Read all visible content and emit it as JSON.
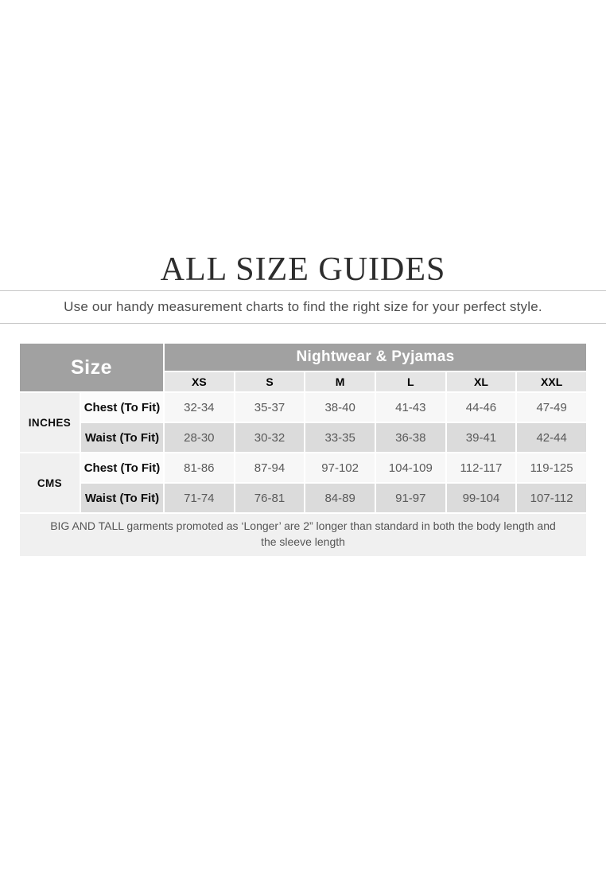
{
  "page": {
    "title": "ALL SIZE GUIDES",
    "subtitle": "Use our handy measurement charts to find the right size for your perfect style."
  },
  "table": {
    "corner_label": "Size",
    "category_header": "Nightwear & Pyjamas",
    "size_labels": [
      "XS",
      "S",
      "M",
      "L",
      "XL",
      "XXL"
    ],
    "unit_groups": [
      {
        "unit": "INCHES",
        "rows": [
          {
            "label": "Chest (To Fit)",
            "values": [
              "32-34",
              "35-37",
              "38-40",
              "41-43",
              "44-46",
              "47-49"
            ]
          },
          {
            "label": "Waist (To Fit)",
            "values": [
              "28-30",
              "30-32",
              "33-35",
              "36-38",
              "39-41",
              "42-44"
            ]
          }
        ]
      },
      {
        "unit": "CMS",
        "rows": [
          {
            "label": "Chest (To Fit)",
            "values": [
              "81-86",
              "87-94",
              "97-102",
              "104-109",
              "112-117",
              "119-125"
            ]
          },
          {
            "label": "Waist (To Fit)",
            "values": [
              "71-74",
              "76-81",
              "84-89",
              "91-97",
              "99-104",
              "107-112"
            ]
          }
        ]
      }
    ],
    "footnote": "BIG AND TALL garments promoted as ‘Longer’ are 2” longer than standard in both the body length and the sleeve length"
  },
  "colors": {
    "header_gray": "#a1a1a1",
    "size_row_gray": "#e5e5e5",
    "waist_row_gray": "#dbdbdb",
    "chest_row_gray": "#f7f7f7",
    "unit_cell_gray": "#f0f0f0",
    "footnote_bg": "#f0f0f0",
    "divider_line": "#c6c6c6"
  }
}
